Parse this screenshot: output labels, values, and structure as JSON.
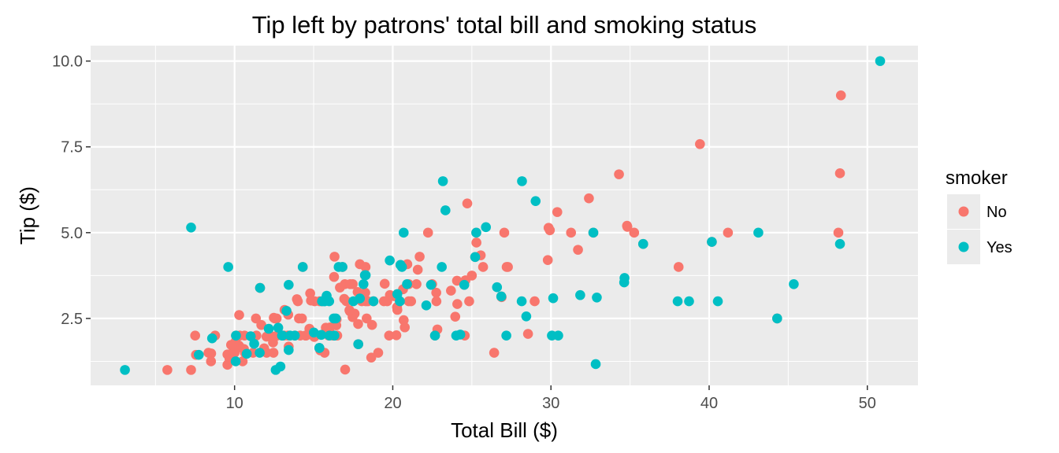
{
  "chart_data": {
    "type": "scatter",
    "title": "Tip left by patrons' total bill and smoking status",
    "xlabel": "Total Bill ($)",
    "ylabel": "Tip ($)",
    "xlim": [
      0.9,
      53.2
    ],
    "ylim": [
      0.55,
      10.45
    ],
    "x_ticks": [
      10,
      20,
      30,
      40,
      50
    ],
    "x_tick_labels": [
      "10",
      "20",
      "30",
      "40",
      "50"
    ],
    "y_ticks": [
      2.5,
      5.0,
      7.5,
      10.0
    ],
    "y_tick_labels": [
      "2.5",
      "5.0",
      "7.5",
      "10.0"
    ],
    "grid": true,
    "background": "#ebebeb",
    "legend": {
      "title": "smoker",
      "position": "right"
    },
    "series": [
      {
        "name": "No",
        "color": "#f8766d",
        "points": [
          [
            16.99,
            1.01
          ],
          [
            10.34,
            1.66
          ],
          [
            21.01,
            3.5
          ],
          [
            23.68,
            3.31
          ],
          [
            24.59,
            3.61
          ],
          [
            25.29,
            4.71
          ],
          [
            8.77,
            2.0
          ],
          [
            26.88,
            3.12
          ],
          [
            15.04,
            1.96
          ],
          [
            14.78,
            3.23
          ],
          [
            10.27,
            1.71
          ],
          [
            35.26,
            5.0
          ],
          [
            15.42,
            1.57
          ],
          [
            18.43,
            3.0
          ],
          [
            14.83,
            3.02
          ],
          [
            21.58,
            3.92
          ],
          [
            10.33,
            1.67
          ],
          [
            16.29,
            3.71
          ],
          [
            16.97,
            3.5
          ],
          [
            20.65,
            3.35
          ],
          [
            17.92,
            4.08
          ],
          [
            20.29,
            2.75
          ],
          [
            15.77,
            2.23
          ],
          [
            39.42,
            7.58
          ],
          [
            19.82,
            3.18
          ],
          [
            17.81,
            2.34
          ],
          [
            13.37,
            2.0
          ],
          [
            12.69,
            2.0
          ],
          [
            21.7,
            4.3
          ],
          [
            19.65,
            3.0
          ],
          [
            9.55,
            1.45
          ],
          [
            18.35,
            2.5
          ],
          [
            15.06,
            3.0
          ],
          [
            20.69,
            2.45
          ],
          [
            17.78,
            3.27
          ],
          [
            24.06,
            3.6
          ],
          [
            16.31,
            2.0
          ],
          [
            16.93,
            3.07
          ],
          [
            18.69,
            2.31
          ],
          [
            31.27,
            5.0
          ],
          [
            16.04,
            2.24
          ],
          [
            17.46,
            2.54
          ],
          [
            13.94,
            3.06
          ],
          [
            9.68,
            1.32
          ],
          [
            30.4,
            5.6
          ],
          [
            18.29,
            3.0
          ],
          [
            22.23,
            5.0
          ],
          [
            32.4,
            6.0
          ],
          [
            28.55,
            2.05
          ],
          [
            18.04,
            3.0
          ],
          [
            12.54,
            2.5
          ],
          [
            10.29,
            2.6
          ],
          [
            34.81,
            5.2
          ],
          [
            9.94,
            1.56
          ],
          [
            25.56,
            4.34
          ],
          [
            19.49,
            3.51
          ],
          [
            48.27,
            6.73
          ],
          [
            17.59,
            2.64
          ],
          [
            20.08,
            3.15
          ],
          [
            16.45,
            2.47
          ],
          [
            20.23,
            2.01
          ],
          [
            12.02,
            1.97
          ],
          [
            17.07,
            3.0
          ],
          [
            26.86,
            3.14
          ],
          [
            25.28,
            5.0
          ],
          [
            14.73,
            2.2
          ],
          [
            10.51,
            1.25
          ],
          [
            27.2,
            4.0
          ],
          [
            22.76,
            3.0
          ],
          [
            17.29,
            2.71
          ],
          [
            19.44,
            3.0
          ],
          [
            16.66,
            3.4
          ],
          [
            10.07,
            1.83
          ],
          [
            32.68,
            5.0
          ],
          [
            15.98,
            2.03
          ],
          [
            34.83,
            5.17
          ],
          [
            13.03,
            2.0
          ],
          [
            18.28,
            4.0
          ],
          [
            24.71,
            5.85
          ],
          [
            21.16,
            3.0
          ],
          [
            28.97,
            3.0
          ],
          [
            22.49,
            3.5
          ],
          [
            5.75,
            1.0
          ],
          [
            16.32,
            4.3
          ],
          [
            22.75,
            3.25
          ],
          [
            40.17,
            4.73
          ],
          [
            27.28,
            4.0
          ],
          [
            12.03,
            1.5
          ],
          [
            21.01,
            3.0
          ],
          [
            12.46,
            1.5
          ],
          [
            11.35,
            2.5
          ],
          [
            15.38,
            3.0
          ],
          [
            44.3,
            2.5
          ],
          [
            22.42,
            3.48
          ],
          [
            20.92,
            4.08
          ],
          [
            15.36,
            1.64
          ],
          [
            20.49,
            4.06
          ],
          [
            25.21,
            4.29
          ],
          [
            18.24,
            3.76
          ],
          [
            14.31,
            4.0
          ],
          [
            14.0,
            3.0
          ],
          [
            7.25,
            1.0
          ],
          [
            38.07,
            4.0
          ],
          [
            23.95,
            2.55
          ],
          [
            25.71,
            4.0
          ],
          [
            17.31,
            3.5
          ],
          [
            29.93,
            5.07
          ],
          [
            10.65,
            1.5
          ],
          [
            12.43,
            1.8
          ],
          [
            24.08,
            2.92
          ],
          [
            11.69,
            2.31
          ],
          [
            13.42,
            1.68
          ],
          [
            14.26,
            2.5
          ],
          [
            15.95,
            2.0
          ],
          [
            12.48,
            2.52
          ],
          [
            29.8,
            4.2
          ],
          [
            8.52,
            1.48
          ],
          [
            14.52,
            2.0
          ],
          [
            11.38,
            2.0
          ],
          [
            22.82,
            2.18
          ],
          [
            19.08,
            1.5
          ],
          [
            20.27,
            2.83
          ],
          [
            11.17,
            1.5
          ],
          [
            12.26,
            2.0
          ],
          [
            18.26,
            3.25
          ],
          [
            8.51,
            1.25
          ],
          [
            10.33,
            2.0
          ],
          [
            14.15,
            2.0
          ],
          [
            13.16,
            2.75
          ],
          [
            17.47,
            3.5
          ],
          [
            34.3,
            6.7
          ],
          [
            41.19,
            5.0
          ],
          [
            27.05,
            5.0
          ],
          [
            16.43,
            2.3
          ],
          [
            8.35,
            1.5
          ],
          [
            18.64,
            1.36
          ],
          [
            11.87,
            1.63
          ],
          [
            9.78,
            1.73
          ],
          [
            7.51,
            2.0
          ],
          [
            14.07,
            2.5
          ],
          [
            13.13,
            2.0
          ],
          [
            17.26,
            2.74
          ],
          [
            24.55,
            2.0
          ],
          [
            19.77,
            2.0
          ],
          [
            29.85,
            5.14
          ],
          [
            48.17,
            5.0
          ],
          [
            25.0,
            3.75
          ],
          [
            13.39,
            2.61
          ],
          [
            16.49,
            2.0
          ],
          [
            21.5,
            3.5
          ],
          [
            12.66,
            2.5
          ],
          [
            16.21,
            2.0
          ],
          [
            13.81,
            2.0
          ],
          [
            24.52,
            3.48
          ],
          [
            20.76,
            2.24
          ],
          [
            31.71,
            4.5
          ],
          [
            10.59,
            1.61
          ],
          [
            10.63,
            2.0
          ],
          [
            48.33,
            9.0
          ],
          [
            20.45,
            3.0
          ],
          [
            13.28,
            2.72
          ],
          [
            15.53,
            3.0
          ],
          [
            18.78,
            3.0
          ],
          [
            22.67,
            2.0
          ],
          [
            17.82,
            1.75
          ],
          [
            16.82,
            4.0
          ],
          [
            10.09,
            2.0
          ],
          [
            26.41,
            1.5
          ],
          [
            11.61,
            3.39
          ],
          [
            35.83,
            4.67
          ],
          [
            9.55,
            1.15
          ],
          [
            15.69,
            1.5
          ],
          [
            7.56,
            1.44
          ],
          [
            14.48,
            2.0
          ],
          [
            24.83,
            3.0
          ],
          [
            10.0,
            1.5
          ]
        ]
      },
      {
        "name": "Yes",
        "color": "#00bfc4",
        "points": [
          [
            38.01,
            3.0
          ],
          [
            11.24,
            1.76
          ],
          [
            20.29,
            3.21
          ],
          [
            13.81,
            2.0
          ],
          [
            11.02,
            1.98
          ],
          [
            18.29,
            3.76
          ],
          [
            3.07,
            1.0
          ],
          [
            15.01,
            2.09
          ],
          [
            26.86,
            3.14
          ],
          [
            25.28,
            5.0
          ],
          [
            17.92,
            3.08
          ],
          [
            44.3,
            2.5
          ],
          [
            22.42,
            3.48
          ],
          [
            15.36,
            1.64
          ],
          [
            20.49,
            4.06
          ],
          [
            25.21,
            4.29
          ],
          [
            14.31,
            4.0
          ],
          [
            16.0,
            2.0
          ],
          [
            17.51,
            3.0
          ],
          [
            38.73,
            3.0
          ],
          [
            24.27,
            2.03
          ],
          [
            12.76,
            2.23
          ],
          [
            30.06,
            2.0
          ],
          [
            25.89,
            5.16
          ],
          [
            48.27,
            4.67
          ],
          [
            28.44,
            2.56
          ],
          [
            23.17,
            6.5
          ],
          [
            32.9,
            3.11
          ],
          [
            40.55,
            3.0
          ],
          [
            20.69,
            5.0
          ],
          [
            20.9,
            3.5
          ],
          [
            30.46,
            2.0
          ],
          [
            18.15,
            3.5
          ],
          [
            23.1,
            4.0
          ],
          [
            15.69,
            3.0
          ],
          [
            19.81,
            4.19
          ],
          [
            28.15,
            3.0
          ],
          [
            11.59,
            1.5
          ],
          [
            7.74,
            1.44
          ],
          [
            30.14,
            3.09
          ],
          [
            12.16,
            2.2
          ],
          [
            13.42,
            3.48
          ],
          [
            8.58,
            1.92
          ],
          [
            13.42,
            1.58
          ],
          [
            16.27,
            2.5
          ],
          [
            10.09,
            2.0
          ],
          [
            20.45,
            3.0
          ],
          [
            13.28,
            2.72
          ],
          [
            22.12,
            2.88
          ],
          [
            24.01,
            2.0
          ],
          [
            15.69,
            3.0
          ],
          [
            11.61,
            3.39
          ],
          [
            10.77,
            1.47
          ],
          [
            15.53,
            3.0
          ],
          [
            10.07,
            1.25
          ],
          [
            12.6,
            1.0
          ],
          [
            32.83,
            1.17
          ],
          [
            35.83,
            4.67
          ],
          [
            29.03,
            5.92
          ],
          [
            27.18,
            2.0
          ],
          [
            22.67,
            2.0
          ],
          [
            17.82,
            1.75
          ],
          [
            18.78,
            3.0
          ],
          [
            34.63,
            3.55
          ],
          [
            34.65,
            3.68
          ],
          [
            23.33,
            5.65
          ],
          [
            45.35,
            3.5
          ],
          [
            28.17,
            6.5
          ],
          [
            32.68,
            5.0
          ],
          [
            20.58,
            4.0
          ],
          [
            15.98,
            3.0
          ],
          [
            50.81,
            10.0
          ],
          [
            13.03,
            2.0
          ],
          [
            7.25,
            5.15
          ],
          [
            9.6,
            4.0
          ],
          [
            16.31,
            2.0
          ],
          [
            16.82,
            4.0
          ],
          [
            26.59,
            3.41
          ],
          [
            13.0,
            2.0
          ],
          [
            15.48,
            2.02
          ],
          [
            12.9,
            1.1
          ],
          [
            13.51,
            2.0
          ],
          [
            15.82,
            3.16
          ],
          [
            16.4,
            2.5
          ],
          [
            18.24,
            3.76
          ],
          [
            43.11,
            5.0
          ],
          [
            16.58,
            4.0
          ],
          [
            40.17,
            4.73
          ],
          [
            31.85,
            3.18
          ],
          [
            15.36,
            1.64
          ],
          [
            24.52,
            3.48
          ]
        ]
      }
    ]
  }
}
